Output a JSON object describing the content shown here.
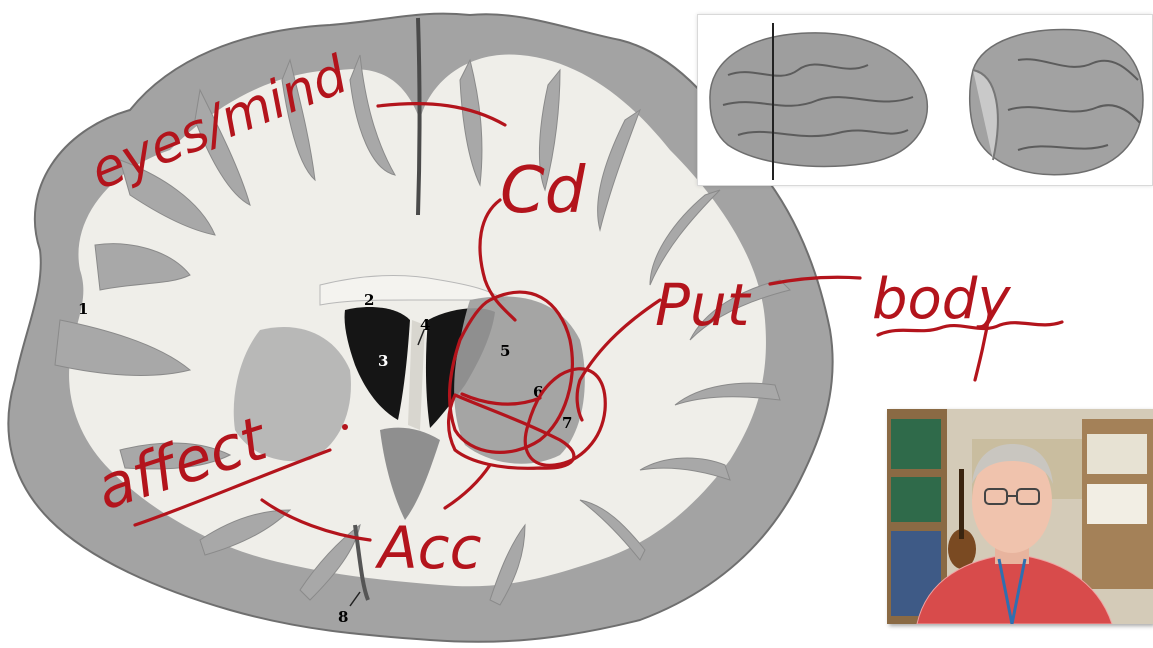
{
  "slide": {
    "numbers": [
      "1",
      "2",
      "3",
      "4",
      "5",
      "6",
      "7",
      "8"
    ],
    "annotations": {
      "eyes_mind": "eyes/mind",
      "caudate": "Cd",
      "putamen": "Put",
      "body": "body",
      "affect": "affect",
      "accumbens": "Acc"
    }
  },
  "colors": {
    "ink": "#b3141c",
    "white_matter": "#efeee9",
    "gray_matter": "#a3a3a3",
    "ventricle": "#151515"
  },
  "icons": {
    "brain_section": "coronal-brain-section-illustration",
    "brain_lateral": "brain-lateral-view-illustration",
    "brain_cut": "brain-cut-view-illustration",
    "presenter": "presenter-webcam-video"
  }
}
